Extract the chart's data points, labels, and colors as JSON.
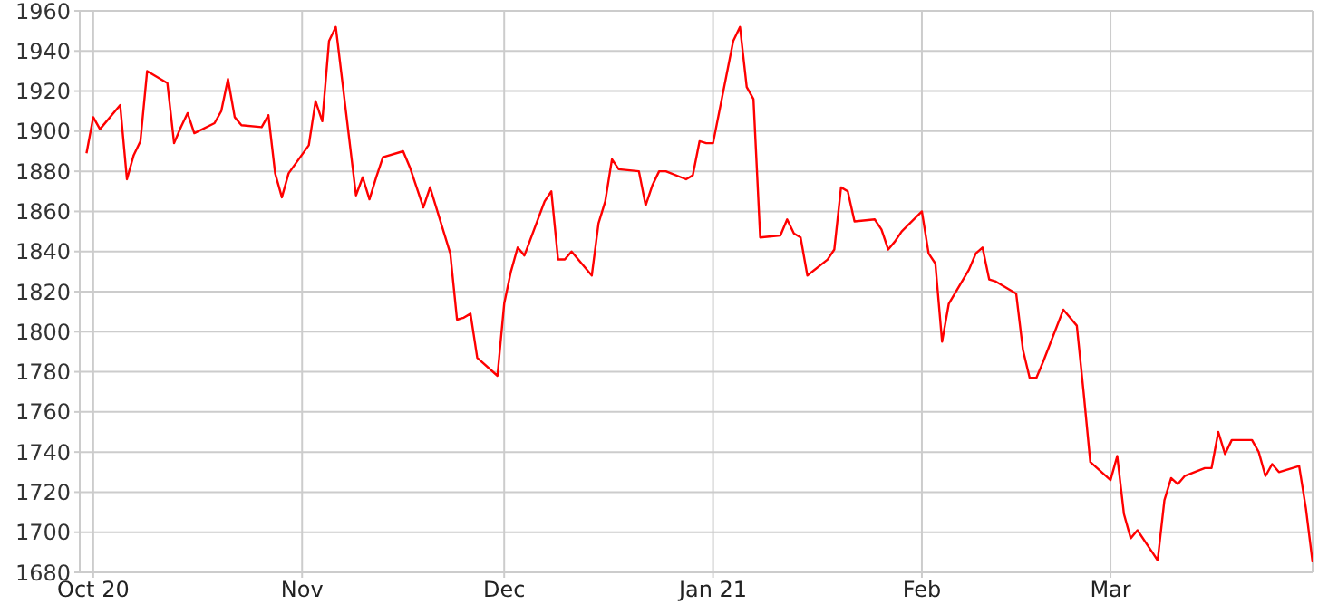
{
  "chart_data": {
    "type": "line",
    "x": [
      "2020-09-30",
      "2020-10-01",
      "2020-10-02",
      "2020-10-05",
      "2020-10-06",
      "2020-10-07",
      "2020-10-08",
      "2020-10-09",
      "2020-10-12",
      "2020-10-13",
      "2020-10-14",
      "2020-10-15",
      "2020-10-16",
      "2020-10-19",
      "2020-10-20",
      "2020-10-21",
      "2020-10-22",
      "2020-10-23",
      "2020-10-26",
      "2020-10-27",
      "2020-10-28",
      "2020-10-29",
      "2020-10-30",
      "2020-11-02",
      "2020-11-03",
      "2020-11-04",
      "2020-11-05",
      "2020-11-06",
      "2020-11-09",
      "2020-11-10",
      "2020-11-11",
      "2020-11-12",
      "2020-11-13",
      "2020-11-16",
      "2020-11-17",
      "2020-11-18",
      "2020-11-19",
      "2020-11-20",
      "2020-11-23",
      "2020-11-24",
      "2020-11-25",
      "2020-11-26",
      "2020-11-27",
      "2020-11-30",
      "2020-12-01",
      "2020-12-02",
      "2020-12-03",
      "2020-12-04",
      "2020-12-07",
      "2020-12-08",
      "2020-12-09",
      "2020-12-10",
      "2020-12-11",
      "2020-12-14",
      "2020-12-15",
      "2020-12-16",
      "2020-12-17",
      "2020-12-18",
      "2020-12-21",
      "2020-12-22",
      "2020-12-23",
      "2020-12-24",
      "2020-12-25",
      "2020-12-28",
      "2020-12-29",
      "2020-12-30",
      "2020-12-31",
      "2021-01-01",
      "2021-01-04",
      "2021-01-05",
      "2021-01-06",
      "2021-01-07",
      "2021-01-08",
      "2021-01-11",
      "2021-01-12",
      "2021-01-13",
      "2021-01-14",
      "2021-01-15",
      "2021-01-18",
      "2021-01-19",
      "2021-01-20",
      "2021-01-21",
      "2021-01-22",
      "2021-01-25",
      "2021-01-26",
      "2021-01-27",
      "2021-01-28",
      "2021-01-29",
      "2021-02-01",
      "2021-02-02",
      "2021-02-03",
      "2021-02-04",
      "2021-02-05",
      "2021-02-08",
      "2021-02-09",
      "2021-02-10",
      "2021-02-11",
      "2021-02-12",
      "2021-02-15",
      "2021-02-16",
      "2021-02-17",
      "2021-02-18",
      "2021-02-19",
      "2021-02-22",
      "2021-02-23",
      "2021-02-24",
      "2021-02-25",
      "2021-02-26",
      "2021-03-01",
      "2021-03-02",
      "2021-03-03",
      "2021-03-04",
      "2021-03-05",
      "2021-03-08",
      "2021-03-09",
      "2021-03-10",
      "2021-03-11",
      "2021-03-12",
      "2021-03-15",
      "2021-03-16",
      "2021-03-17",
      "2021-03-18",
      "2021-03-19",
      "2021-03-22",
      "2021-03-23",
      "2021-03-24",
      "2021-03-25",
      "2021-03-26",
      "2021-03-29",
      "2021-03-30",
      "2021-03-31"
    ],
    "series": [
      {
        "color": "#ff0000",
        "values": [
          1889,
          1907,
          1901,
          1913,
          1876,
          1888,
          1895,
          1930,
          1924,
          1894,
          1902,
          1909,
          1899,
          1904,
          1910,
          1926,
          1907,
          1903,
          1902,
          1908,
          1879,
          1867,
          1879,
          1893,
          1915,
          1905,
          1945,
          1952,
          1868,
          1877,
          1866,
          1877,
          1887,
          1890,
          1882,
          1872,
          1862,
          1872,
          1839,
          1806,
          1807,
          1809,
          1787,
          1778,
          1814,
          1830,
          1842,
          1838,
          1865,
          1870,
          1836,
          1836,
          1840,
          1828,
          1854,
          1865,
          1886,
          1881,
          1880,
          1863,
          1873,
          1880,
          1880,
          1876,
          1878,
          1895,
          1894,
          1894,
          1945,
          1952,
          1922,
          1916,
          1847,
          1848,
          1856,
          1849,
          1847,
          1828,
          1836,
          1841,
          1872,
          1870,
          1855,
          1856,
          1851,
          1841,
          1845,
          1850,
          1860,
          1839,
          1834,
          1795,
          1814,
          1831,
          1839,
          1842,
          1826,
          1825,
          1819,
          1791,
          1777,
          1777,
          1785,
          1811,
          1807,
          1803,
          1770,
          1735,
          1726,
          1738,
          1709,
          1697,
          1701,
          1686,
          1716,
          1727,
          1724,
          1728,
          1732,
          1732,
          1750,
          1739,
          1746,
          1746,
          1740,
          1728,
          1734,
          1730,
          1733,
          1712,
          1685
        ]
      }
    ],
    "xlim": [
      "2020-09-29",
      "2021-03-31"
    ],
    "xticks": [
      {
        "value": "2020-10-01",
        "label": "Oct 20"
      },
      {
        "value": "2020-11-01",
        "label": "Nov"
      },
      {
        "value": "2020-12-01",
        "label": "Dec"
      },
      {
        "value": "2021-01-01",
        "label": "Jan 21"
      },
      {
        "value": "2021-02-01",
        "label": "Feb"
      },
      {
        "value": "2021-03-01",
        "label": "Mar"
      }
    ],
    "ylim": [
      1680,
      1960
    ],
    "yticks": [
      1680,
      1700,
      1720,
      1740,
      1760,
      1780,
      1800,
      1820,
      1840,
      1860,
      1880,
      1900,
      1920,
      1940,
      1960
    ],
    "grid": true,
    "legend": false,
    "marker": "none",
    "line_style": "solid"
  }
}
